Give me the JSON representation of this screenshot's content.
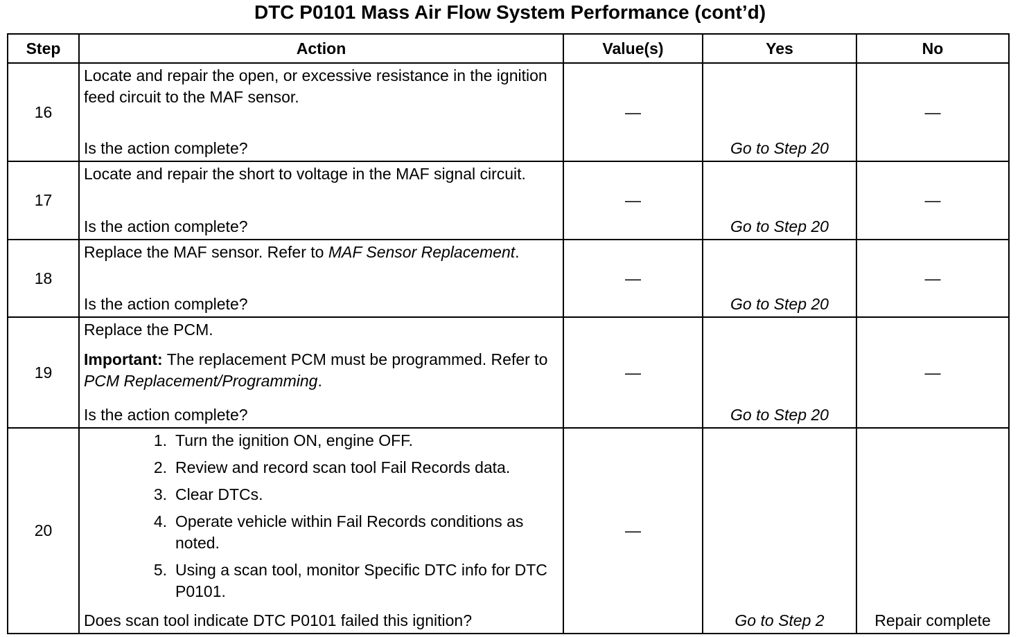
{
  "title": "DTC P0101 Mass Air Flow System Performance (cont’d)",
  "table": {
    "header": [
      "Step",
      "Action",
      "Value(s)",
      "Yes",
      "No"
    ],
    "rows": [
      {
        "step": "16",
        "action": [
          [
            {
              "text": "Locate and repair the open, or excessive resistance in the ignition feed circuit to the MAF sensor."
            }
          ]
        ],
        "question": "Is the action complete?",
        "values": "—",
        "yes": "Go to Step 20",
        "no": "—"
      },
      {
        "step": "17",
        "action": [
          [
            {
              "text": "Locate and repair the short to voltage in the MAF signal circuit."
            }
          ]
        ],
        "question": "Is the action complete?",
        "values": "—",
        "yes": "Go to Step 20",
        "no": "—"
      },
      {
        "step": "18",
        "action": [
          [
            {
              "text": "Replace the MAF sensor. Refer to "
            },
            {
              "text": "MAF Sensor Replacement",
              "italic": true
            },
            {
              "text": "."
            }
          ]
        ],
        "question": "Is the action complete?",
        "values": "—",
        "yes": "Go to Step 20",
        "no": "—"
      },
      {
        "step": "19",
        "action": [
          [
            {
              "text": "Replace the PCM."
            }
          ],
          [
            {
              "text": "Important:",
              "bold": true
            },
            {
              "text": " The replacement PCM must be programmed. Refer to "
            },
            {
              "text": "PCM Replacement/Programming",
              "italic": true
            },
            {
              "text": "."
            }
          ]
        ],
        "question": "Is the action complete?",
        "values": "—",
        "yes": "Go to Step 20",
        "no": "—"
      },
      {
        "step": "20",
        "items": [
          {
            "number": "1.",
            "text": "Turn the ignition ON, engine OFF."
          },
          {
            "number": "2.",
            "text": "Review and record scan tool Fail Records data."
          },
          {
            "number": "3.",
            "text": "Clear DTCs."
          },
          {
            "number": "4.",
            "text": "Operate vehicle within Fail Records conditions as noted."
          },
          {
            "number": "5.",
            "text": "Using a scan tool, monitor Specific DTC info for DTC P0101."
          }
        ],
        "question": "Does scan tool indicate DTC P0101 failed this ignition?",
        "values": "—",
        "yes": "Go to Step 2",
        "no": "Repair complete"
      }
    ]
  }
}
